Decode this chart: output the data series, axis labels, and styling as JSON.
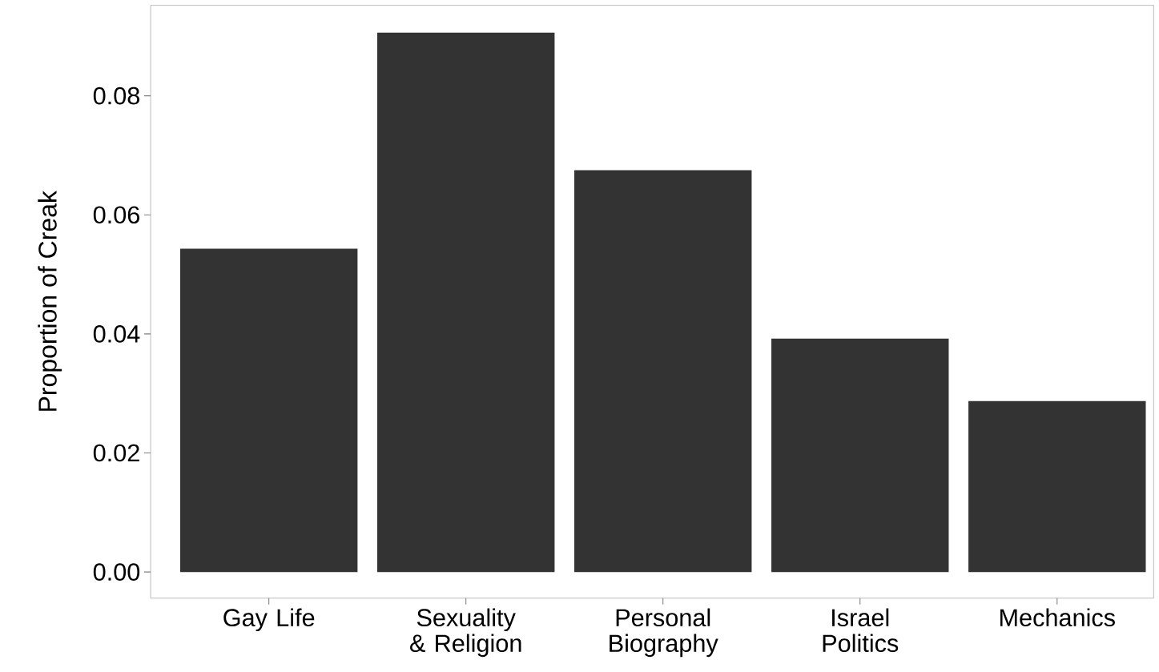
{
  "chart_data": {
    "type": "bar",
    "ylabel": "Proportion of Creak",
    "categories": [
      "Gay Life",
      "Sexuality & Religion",
      "Personal Biography",
      "Israel Politics",
      "Mechanics"
    ],
    "values": [
      0.0543,
      0.0906,
      0.0675,
      0.0392,
      0.0287
    ],
    "color": "#333333",
    "ylim": [
      -0.0044,
      0.0952
    ],
    "yticks": [
      {
        "value": 0,
        "label": "0.00"
      },
      {
        "value": 0.02,
        "label": "0.02"
      },
      {
        "value": 0.04,
        "label": "0.04"
      },
      {
        "value": 0.06,
        "label": "0.06"
      },
      {
        "value": 0.08,
        "label": "0.08"
      }
    ],
    "grid": false
  }
}
